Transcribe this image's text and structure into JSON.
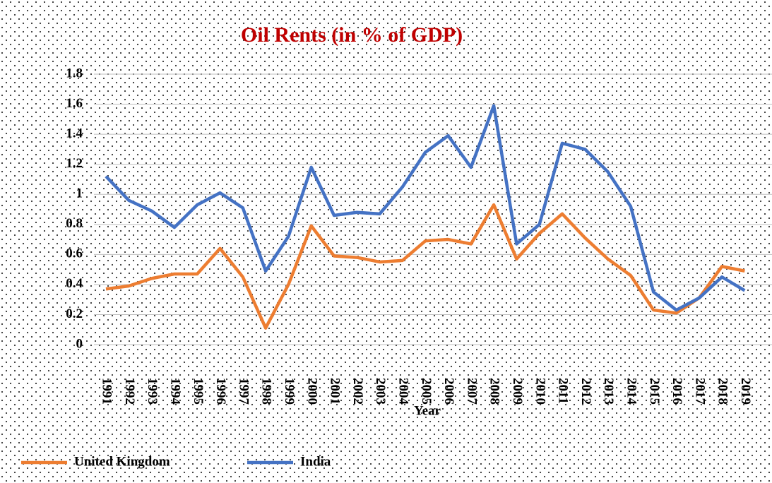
{
  "chart_data": {
    "type": "line",
    "title": "Oil Rents (in % of GDP)",
    "x_label": "Year",
    "categories": [
      "1991",
      "1992",
      "1993",
      "1994",
      "1995",
      "1996",
      "1997",
      "1998",
      "1999",
      "2000",
      "2001",
      "2002",
      "2003",
      "2004",
      "2005",
      "2006",
      "2007",
      "2008",
      "2009",
      "2010",
      "2011",
      "2012",
      "2013",
      "2014",
      "2015",
      "2016",
      "2017",
      "2018",
      "2019"
    ],
    "series": [
      {
        "name": "United Kingdom",
        "color": "#ed7d31",
        "values": [
          0.37,
          0.39,
          0.44,
          0.47,
          0.47,
          0.64,
          0.45,
          0.11,
          0.4,
          0.79,
          0.59,
          0.58,
          0.55,
          0.56,
          0.69,
          0.7,
          0.67,
          0.93,
          0.57,
          0.74,
          0.87,
          0.71,
          0.57,
          0.46,
          0.23,
          0.21,
          0.31,
          0.52,
          0.49
        ]
      },
      {
        "name": "India",
        "color": "#4472c4",
        "values": [
          1.12,
          0.96,
          0.89,
          0.78,
          0.93,
          1.01,
          0.91,
          0.49,
          0.72,
          1.18,
          0.86,
          0.88,
          0.87,
          1.05,
          1.28,
          1.39,
          1.18,
          1.59,
          0.67,
          0.8,
          1.34,
          1.3,
          1.15,
          0.92,
          0.35,
          0.23,
          0.31,
          0.45,
          0.36
        ]
      }
    ],
    "ylim": [
      0,
      1.8
    ],
    "yticks": [
      0,
      0.2,
      0.4,
      0.6,
      0.8,
      1,
      1.2,
      1.4,
      1.6,
      1.8
    ],
    "grid": true,
    "legend": "bottom-left"
  }
}
